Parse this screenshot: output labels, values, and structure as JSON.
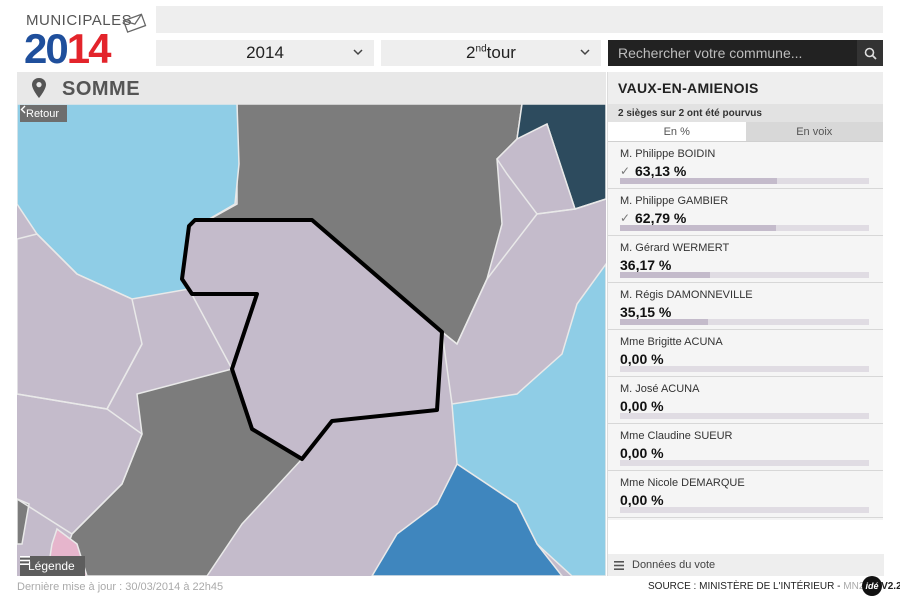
{
  "logo": {
    "word": "MUNICIPALES",
    "year_part1": "20",
    "year_part2": "14"
  },
  "filters": {
    "year": "2014",
    "tour_num": "2",
    "tour_sup": "nd",
    "tour_word": "tour"
  },
  "search": {
    "placeholder": "Rechercher votre commune..."
  },
  "region": {
    "name": "SOMME"
  },
  "map": {
    "back_label": "Retour",
    "legend_label": "Légende",
    "colors": {
      "lavender": "#c4bbcb",
      "gray": "#7c7c7c",
      "light_blue": "#8fcde6",
      "mid_blue": "#3f86be",
      "dark_slate": "#2d4b5e",
      "pink": "#e6b5cc",
      "outline": "#000000"
    }
  },
  "panel": {
    "commune": "VAUX-EN-AMIENOIS",
    "seats_text": "2 sièges sur 2 ont été pourvus",
    "tab_percent": "En %",
    "tab_votes": "En voix",
    "donnees_label": "Données du vote",
    "candidates": [
      {
        "name": "M. Philippe BOIDIN",
        "pct": "63,13 %",
        "value": 63.13,
        "elected": true
      },
      {
        "name": "M. Philippe GAMBIER",
        "pct": "62,79 %",
        "value": 62.79,
        "elected": true
      },
      {
        "name": "M. Gérard WERMERT",
        "pct": "36,17 %",
        "value": 36.17,
        "elected": false
      },
      {
        "name": "M. Régis DAMONNEVILLE",
        "pct": "35,15 %",
        "value": 35.15,
        "elected": false
      },
      {
        "name": "Mme Brigitte ACUNA",
        "pct": "0,00 %",
        "value": 0,
        "elected": false
      },
      {
        "name": "M. José ACUNA",
        "pct": "0,00 %",
        "value": 0,
        "elected": false
      },
      {
        "name": "Mme Claudine SUEUR",
        "pct": "0,00 %",
        "value": 0,
        "elected": false
      },
      {
        "name": "Mme Nicole DEMARQUE",
        "pct": "0,00 %",
        "value": 0,
        "elected": false
      }
    ],
    "check_glyph": "✓"
  },
  "footer": {
    "updated": "Dernière mise à jour : 30/03/2014 à 22h45",
    "source_label": "SOURCE : MINISTÈRE DE L'INTÉRIEUR - ",
    "version_a": "MN2014",
    "version_b": "V2.2",
    "ide_logo": "idé"
  }
}
